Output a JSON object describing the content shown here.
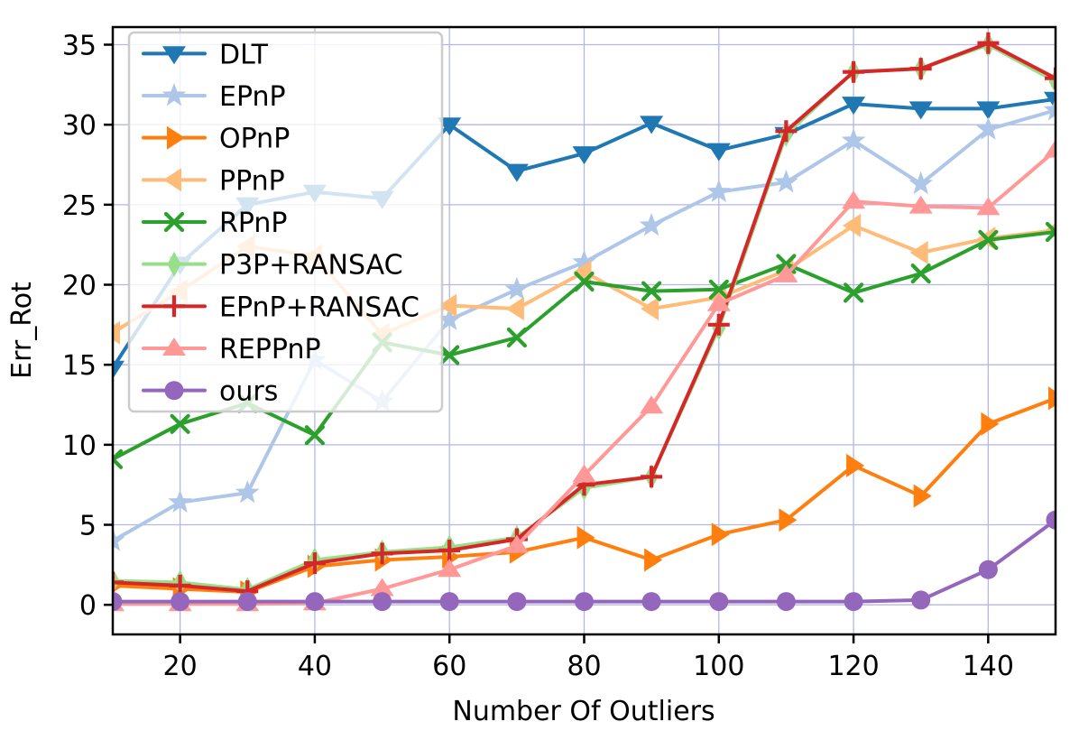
{
  "figure": {
    "background": "#ffffff"
  },
  "chart_data": {
    "type": "line",
    "title": "",
    "xlabel": "Number Of Outliers",
    "ylabel": "Err_Rot",
    "x": [
      10,
      20,
      30,
      40,
      50,
      60,
      70,
      80,
      90,
      100,
      110,
      120,
      130,
      140,
      150
    ],
    "xlim": [
      10,
      150
    ],
    "ylim": [
      -1.85,
      36.1
    ],
    "xticks": [
      20,
      40,
      60,
      80,
      100,
      120,
      140
    ],
    "yticks": [
      0,
      5,
      10,
      15,
      20,
      25,
      30,
      35
    ],
    "grid": true,
    "grid_color": "#b4b7e6",
    "spine_color": "#000000",
    "legend_position": "upper left",
    "legend_border_color": "#cccccc",
    "legend_fill_opacity": 0.8,
    "series": [
      {
        "name": "DLT",
        "color": "#1f77b4",
        "marker": "triangle-down",
        "values": [
          14.8,
          21.3,
          25.0,
          25.8,
          25.4,
          30.0,
          27.1,
          28.2,
          30.1,
          28.4,
          29.4,
          31.3,
          31.0,
          31.0,
          31.6
        ]
      },
      {
        "name": "EPnP",
        "color": "#aec7e8",
        "marker": "star",
        "values": [
          4.0,
          6.4,
          7.0,
          15.3,
          12.7,
          17.8,
          19.7,
          21.4,
          23.7,
          25.8,
          26.4,
          29.0,
          26.3,
          29.7,
          30.9
        ]
      },
      {
        "name": "OPnP",
        "color": "#ff7f0e",
        "marker": "triangle-right",
        "values": [
          1.2,
          1.0,
          0.8,
          2.4,
          2.8,
          3.0,
          3.3,
          4.2,
          2.8,
          4.4,
          5.3,
          8.7,
          6.8,
          11.3,
          12.9
        ]
      },
      {
        "name": "PPnP",
        "color": "#ffbb78",
        "marker": "triangle-left",
        "values": [
          17.0,
          19.6,
          22.4,
          21.8,
          16.9,
          18.7,
          18.5,
          20.8,
          18.5,
          19.2,
          20.9,
          23.7,
          22.0,
          22.9,
          23.4
        ]
      },
      {
        "name": "RPnP",
        "color": "#2ca02c",
        "marker": "x",
        "values": [
          9.1,
          11.3,
          12.6,
          10.6,
          16.4,
          15.6,
          16.7,
          20.2,
          19.6,
          19.7,
          21.3,
          19.5,
          20.7,
          22.8,
          23.3
        ]
      },
      {
        "name": "P3P+RANSAC",
        "color": "#98df8a",
        "marker": "diamond",
        "values": [
          1.5,
          1.4,
          0.95,
          2.8,
          3.3,
          3.6,
          4.2,
          7.3,
          8.0,
          17.3,
          29.4,
          33.3,
          33.5,
          35.0,
          32.7
        ]
      },
      {
        "name": "EPnP+RANSAC",
        "color": "#d62728",
        "marker": "plus",
        "values": [
          1.4,
          1.2,
          0.85,
          2.6,
          3.2,
          3.4,
          4.1,
          7.5,
          8.0,
          17.5,
          29.6,
          33.3,
          33.5,
          35.1,
          32.9
        ]
      },
      {
        "name": "REPPnP",
        "color": "#ff9896",
        "marker": "triangle-up",
        "values": [
          0.05,
          0.05,
          0.05,
          0.1,
          1.0,
          2.2,
          3.7,
          8.1,
          12.4,
          18.8,
          20.6,
          25.2,
          24.9,
          24.8,
          28.4
        ]
      },
      {
        "name": "ours",
        "color": "#9467bd",
        "marker": "circle",
        "values": [
          0.2,
          0.2,
          0.2,
          0.2,
          0.2,
          0.2,
          0.2,
          0.2,
          0.2,
          0.2,
          0.2,
          0.2,
          0.3,
          2.2,
          5.3
        ]
      }
    ]
  }
}
